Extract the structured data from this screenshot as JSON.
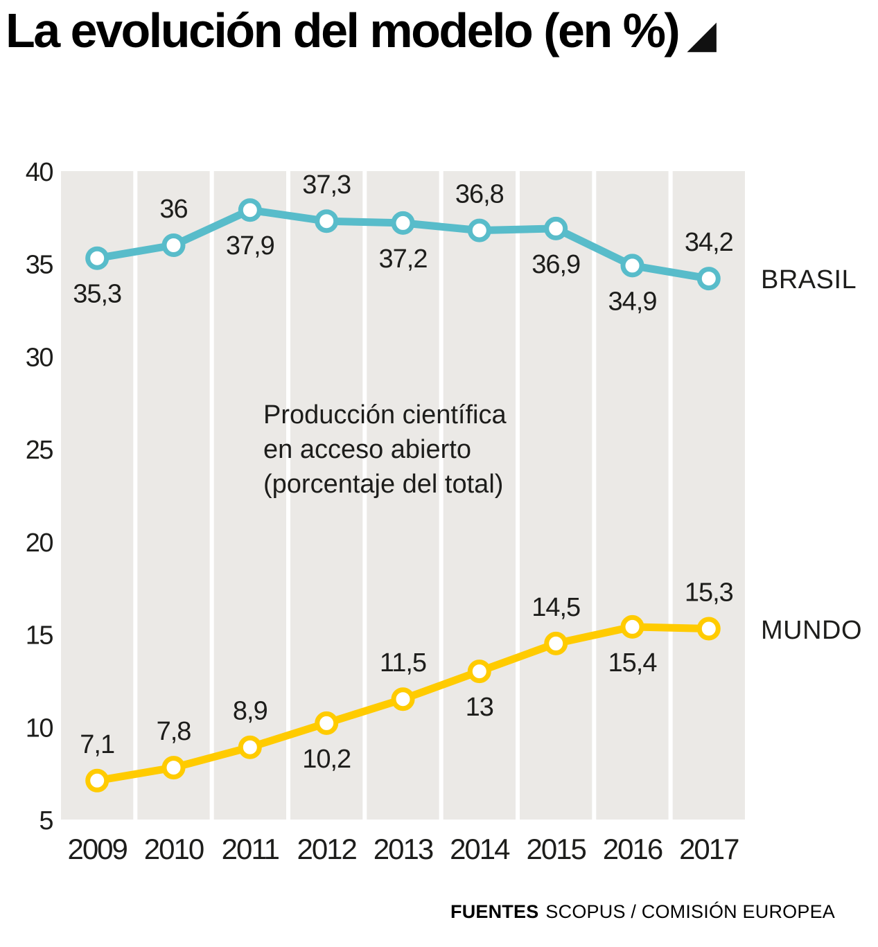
{
  "title": {
    "text": "La evolución del modelo (en %)",
    "icon": "lower-right-triangle",
    "icon_glyph": "◢"
  },
  "chart_data": {
    "type": "line",
    "title": "La evolución del modelo (en %)",
    "categories": [
      "2009",
      "2010",
      "2011",
      "2012",
      "2013",
      "2014",
      "2015",
      "2016",
      "2017"
    ],
    "series": [
      {
        "name": "BRASIL",
        "color": "#58bcca",
        "values": [
          35.3,
          36,
          37.9,
          37.3,
          37.2,
          36.8,
          36.9,
          34.9,
          34.2
        ],
        "labels": [
          "35,3",
          "36",
          "37,9",
          "37,3",
          "37,2",
          "36,8",
          "36,9",
          "34,9",
          "34,2"
        ],
        "label_positions": [
          "below",
          "above",
          "below",
          "above",
          "below",
          "above",
          "below",
          "below",
          "above"
        ]
      },
      {
        "name": "MUNDO",
        "color": "#ffcb00",
        "values": [
          7.1,
          7.8,
          8.9,
          10.2,
          11.5,
          13,
          14.5,
          15.4,
          15.3
        ],
        "labels": [
          "7,1",
          "7,8",
          "8,9",
          "10,2",
          "11,5",
          "13",
          "14,5",
          "15,4",
          "15,3"
        ],
        "label_positions": [
          "above",
          "above",
          "above",
          "below",
          "above",
          "below",
          "above",
          "below",
          "above"
        ]
      }
    ],
    "ylim": [
      5,
      40
    ],
    "yticks": [
      40,
      35,
      30,
      25,
      20,
      15,
      10,
      5
    ],
    "grid": "white vertical bands between year columns",
    "plot_bg": "#ebe9e6",
    "legend_position": "right",
    "annotation": {
      "lines": [
        "Producción científica",
        "en acceso abierto",
        "(porcentaje del total)"
      ]
    }
  },
  "footer": {
    "label": "FUENTES",
    "sources": "SCOPUS / COMISIÓN EUROPEA"
  }
}
